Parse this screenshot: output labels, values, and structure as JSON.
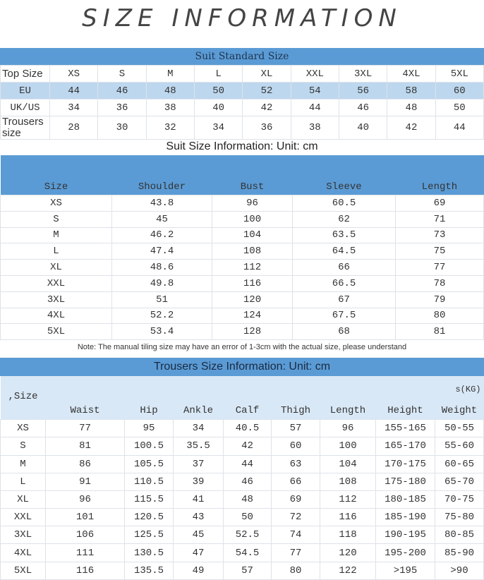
{
  "title": "SIZE INFORMATION",
  "standard": {
    "heading": "Suit Standard Size",
    "rows": [
      {
        "label": "Top Size",
        "values": [
          "XS",
          "S",
          "M",
          "L",
          "XL",
          "XXL",
          "3XL",
          "4XL",
          "5XL"
        ]
      },
      {
        "label": "EU",
        "values": [
          "44",
          "46",
          "48",
          "50",
          "52",
          "54",
          "56",
          "58",
          "60"
        ]
      },
      {
        "label": "UK/US",
        "values": [
          "34",
          "36",
          "38",
          "40",
          "42",
          "44",
          "46",
          "48",
          "50"
        ]
      },
      {
        "label": "Trousers size",
        "values": [
          "28",
          "30",
          "32",
          "34",
          "36",
          "38",
          "40",
          "42",
          "44"
        ]
      }
    ]
  },
  "suit": {
    "heading": "Suit Size Information: Unit: cm",
    "columns": [
      "Size",
      "Shoulder",
      "Bust",
      "Sleeve",
      "Length"
    ],
    "rows": [
      [
        "XS",
        "43.8",
        "96",
        "60.5",
        "69"
      ],
      [
        "S",
        "45",
        "100",
        "62",
        "71"
      ],
      [
        "M",
        "46.2",
        "104",
        "63.5",
        "73"
      ],
      [
        "L",
        "47.4",
        "108",
        "64.5",
        "75"
      ],
      [
        "XL",
        "48.6",
        "112",
        "66",
        "77"
      ],
      [
        "XXL",
        "49.8",
        "116",
        "66.5",
        "78"
      ],
      [
        "3XL",
        "51",
        "120",
        "67",
        "79"
      ],
      [
        "4XL",
        "52.2",
        "124",
        "67.5",
        "80"
      ],
      [
        "5XL",
        "53.4",
        "128",
        "68",
        "81"
      ]
    ],
    "note": "Note: The manual tiling size may have an error of 1-3cm with the actual size, please understand"
  },
  "trousers": {
    "heading": "Trousers Size Information: Unit: cm",
    "columns": [
      ",Size",
      "Waist",
      "Hip",
      "Ankle",
      "Calf",
      "Thigh",
      "Length",
      "Height",
      "Weight"
    ],
    "weight_unit": "s(KG)",
    "rows": [
      [
        "XS",
        "77",
        "95",
        "34",
        "40.5",
        "57",
        "96",
        "155-165",
        "50-55"
      ],
      [
        "S",
        "81",
        "100.5",
        "35.5",
        "42",
        "60",
        "100",
        "165-170",
        "55-60"
      ],
      [
        "M",
        "86",
        "105.5",
        "37",
        "44",
        "63",
        "104",
        "170-175",
        "60-65"
      ],
      [
        "L",
        "91",
        "110.5",
        "39",
        "46",
        "66",
        "108",
        "175-180",
        "65-70"
      ],
      [
        "XL",
        "96",
        "115.5",
        "41",
        "48",
        "69",
        "112",
        "180-185",
        "70-75"
      ],
      [
        "XXL",
        "101",
        "120.5",
        "43",
        "50",
        "72",
        "116",
        "185-190",
        "75-80"
      ],
      [
        "3XL",
        "106",
        "125.5",
        "45",
        "52.5",
        "74",
        "118",
        "190-195",
        "80-85"
      ],
      [
        "4XL",
        "111",
        "130.5",
        "47",
        "54.5",
        "77",
        "120",
        "195-200",
        "85-90"
      ],
      [
        "5XL",
        "116",
        "135.5",
        "49",
        "57",
        "80",
        "122",
        ">195",
        ">90"
      ]
    ]
  }
}
